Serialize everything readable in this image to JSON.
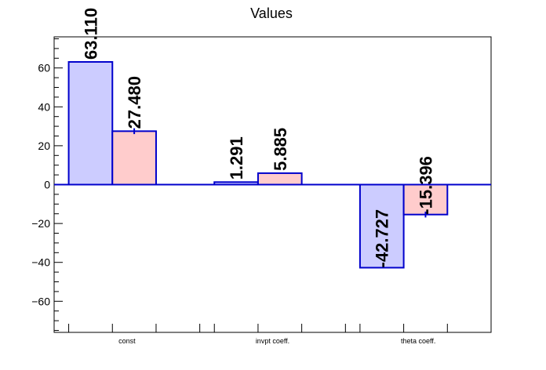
{
  "chart_data": {
    "type": "bar",
    "title": "Values",
    "xlabel": "",
    "ylabel": "",
    "categories": [
      "const",
      "invpt coeff.",
      "theta coeff."
    ],
    "series": [
      {
        "values": [
          63.11,
          1.291,
          -42.727
        ],
        "errors": [
          0,
          0,
          0
        ],
        "fill": "#ccccff",
        "stroke": "#0000cc"
      },
      {
        "values": [
          27.48,
          5.885,
          -15.396
        ],
        "errors": [
          1.5,
          0,
          1.5
        ],
        "fill": "#ffcccc",
        "stroke": "#0000cc"
      }
    ],
    "value_labels": [
      [
        "63.110",
        "1.291",
        "-42.727"
      ],
      [
        "27.480",
        "5.885",
        "-15.396"
      ]
    ],
    "ylim": [
      -76,
      76
    ],
    "yticks": [
      -60,
      -40,
      -20,
      0,
      20,
      40,
      60
    ],
    "ytick_labels": [
      "−60",
      "−40",
      "−20",
      "0",
      "20",
      "40",
      "60"
    ],
    "grid": false,
    "legend": "none"
  }
}
